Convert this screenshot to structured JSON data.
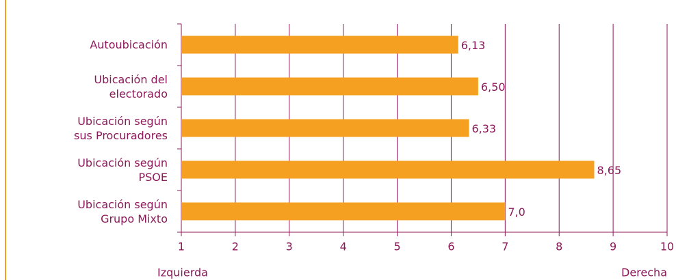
{
  "chart_data": {
    "type": "barh",
    "categories": [
      "Autoubicación",
      "Ubicación del\nelectorado",
      "Ubicación según\nsus Procuradores",
      "Ubicación según\nPSOE",
      "Ubicación según\nGrupo Mixto"
    ],
    "values": [
      6.13,
      6.5,
      6.33,
      8.65,
      7.0
    ],
    "value_labels": [
      "6,13",
      "6,50",
      "6,33",
      "8,65",
      "7,0"
    ],
    "color": "#f5a020",
    "xlim": [
      1,
      10
    ],
    "xticks": [
      1,
      2,
      3,
      4,
      5,
      6,
      7,
      8,
      9,
      10
    ],
    "grid": true,
    "x_axis_left_label": "Izquierda",
    "x_axis_right_label": "Derecha"
  }
}
